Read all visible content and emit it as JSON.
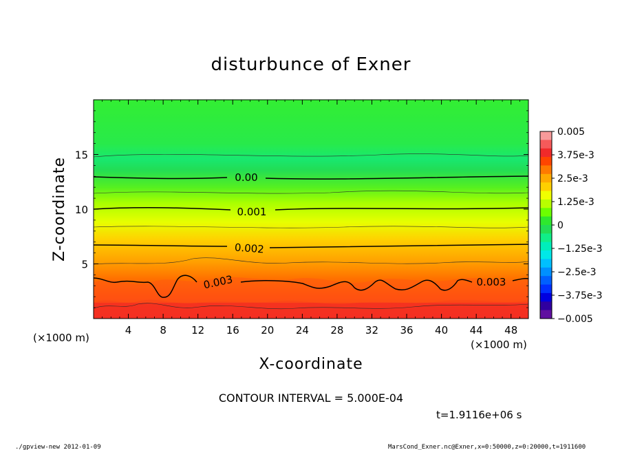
{
  "chart_data": {
    "type": "contour",
    "title": "disturbunce of Exner",
    "xlabel": "X-coordinate",
    "ylabel": "Z-coordinate",
    "x_unit_label_left": "(×1000 m)",
    "x_unit_label_right": "(×1000 m)",
    "xlim": [
      0,
      50
    ],
    "ylim": [
      0,
      20
    ],
    "x_ticks": [
      4,
      8,
      12,
      16,
      20,
      24,
      28,
      32,
      36,
      40,
      44,
      48
    ],
    "y_ticks": [
      5,
      10,
      15
    ],
    "colorbar": {
      "min": -0.005,
      "max": 0.005,
      "tick_labels": [
        "0.005",
        "3.75e-3",
        "2.5e-3",
        "1.25e-3",
        "0",
        "−1.25e-3",
        "−2.5e-3",
        "−3.75e-3",
        "−0.005"
      ],
      "colors_top_to_bottom": [
        "#f79a9a",
        "#f55a5a",
        "#f02a2a",
        "#ff4500",
        "#ff7a00",
        "#ffaa00",
        "#ffd000",
        "#f0ff00",
        "#b8ff00",
        "#6cff00",
        "#2ee82e",
        "#22dd55",
        "#10ee88",
        "#00eebb",
        "#00e8e8",
        "#00c0ff",
        "#0090ff",
        "#0060ff",
        "#0030ff",
        "#0000e0",
        "#3000a0",
        "#6010a0"
      ]
    },
    "contour_interval": "CONTOUR INTERVAL = 5.000E-04",
    "contour_labels": [
      {
        "text": "0.00",
        "x": 17.5,
        "z": 12.9
      },
      {
        "text": "0.001",
        "x": 18.0,
        "z": 9.9
      },
      {
        "text": "0.002",
        "x": 17.5,
        "z": 6.6
      },
      {
        "text": "0.003",
        "x": 14.5,
        "z": 3.7
      },
      {
        "text": "0.003",
        "x": 45.5,
        "z": 3.5
      }
    ],
    "time_label": "t=1.9116e+06 s",
    "footer_left": "./gpview-new   2012-01-09",
    "footer_right": "MarsCond_Exner.nc@Exner,x=0:50000,z=0:20000,t=1911600"
  }
}
